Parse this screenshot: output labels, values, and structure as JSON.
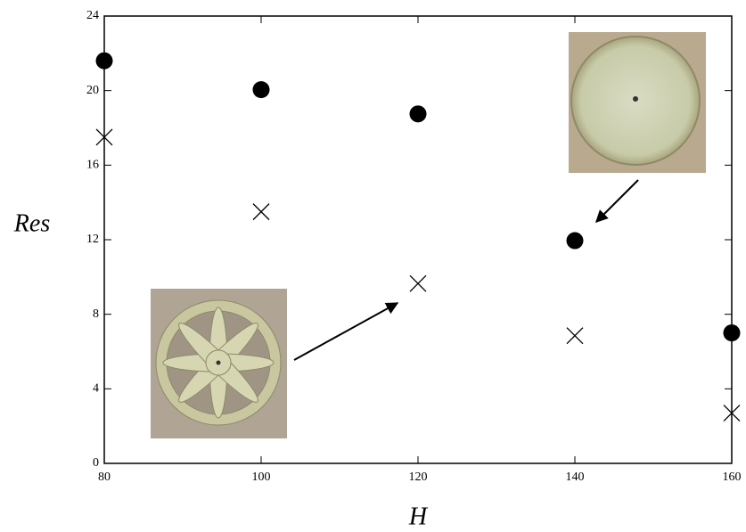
{
  "chart_data": {
    "type": "scatter",
    "x_label": "H",
    "y_label": "Res",
    "x": [
      80,
      100,
      120,
      140,
      160
    ],
    "series": [
      {
        "marker": "circle",
        "color": "#000000",
        "values": [
          21.6,
          20.05,
          18.75,
          11.95,
          7.0
        ]
      },
      {
        "marker": "cross",
        "color": "#000000",
        "values": [
          17.5,
          13.5,
          9.65,
          6.85,
          2.7
        ]
      }
    ],
    "xlim": [
      80,
      160
    ],
    "xticks": [
      80,
      100,
      120,
      140,
      160
    ],
    "ylim": [
      0,
      24
    ],
    "yticks": [
      0,
      4,
      8,
      12,
      16,
      20,
      24
    ],
    "grid": false
  }
}
